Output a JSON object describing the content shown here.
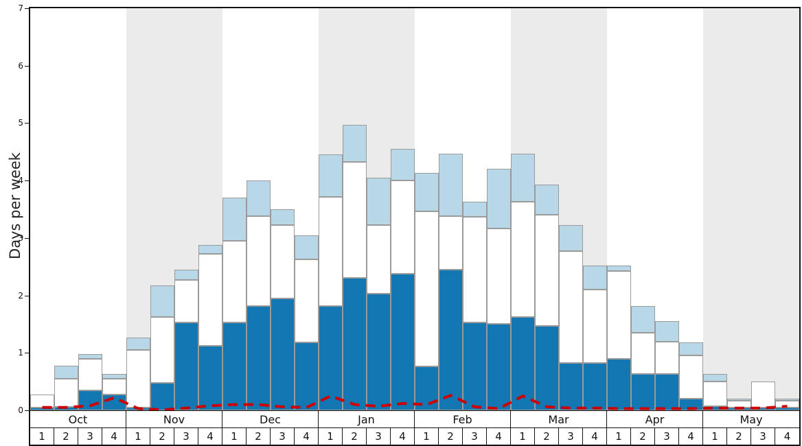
{
  "chart_data": {
    "type": "bar",
    "title": "",
    "ylabel": "Days per week",
    "ylim": [
      0,
      7
    ],
    "yticks": [
      0,
      1,
      2,
      3,
      4,
      5,
      6,
      7
    ],
    "grid": false,
    "legend": "none",
    "months": [
      "Oct",
      "Nov",
      "Dec",
      "Jan",
      "Feb",
      "Mar",
      "Apr",
      "May"
    ],
    "weeks_per_month": 4,
    "week_labels": [
      "1",
      "2",
      "3",
      "4"
    ],
    "stacking_note": "values are cumulative stack tops in days-per-week; stack order bottom-to-top: heavy-snow (dark blue), average-snow (white), light-snow (light blue)",
    "series_tops": {
      "dark": [
        0.05,
        0.06,
        0.35,
        0.28,
        0.05,
        0.48,
        1.53,
        1.12,
        1.53,
        1.82,
        1.95,
        1.18,
        1.82,
        2.3,
        2.03,
        2.38,
        0.77,
        2.45,
        1.53,
        1.5,
        1.62,
        1.47,
        0.83,
        0.83,
        0.9,
        0.63,
        0.63,
        0.2,
        0.07,
        0.05,
        0.05,
        0.05
      ],
      "white": [
        0.27,
        0.55,
        0.9,
        0.55,
        1.05,
        1.63,
        2.27,
        2.72,
        2.95,
        3.38,
        3.22,
        2.63,
        3.72,
        4.33,
        3.22,
        4.0,
        3.47,
        3.38,
        3.37,
        3.17,
        3.63,
        3.4,
        2.77,
        2.1,
        2.43,
        1.35,
        1.2,
        0.95,
        0.5,
        0.17,
        0.5,
        0.17
      ],
      "total": [
        0.27,
        0.78,
        0.98,
        0.63,
        1.27,
        2.17,
        2.45,
        2.88,
        3.7,
        4.0,
        3.5,
        3.05,
        4.45,
        4.97,
        4.05,
        4.55,
        4.13,
        4.47,
        3.63,
        4.2,
        4.47,
        3.93,
        3.22,
        2.52,
        2.52,
        1.82,
        1.55,
        1.18,
        0.63,
        0.2,
        0.5,
        0.2
      ]
    },
    "red_line": {
      "name": "dashed-red-line",
      "values": [
        0.05,
        0.05,
        0.08,
        0.22,
        0.03,
        0.01,
        0.04,
        0.08,
        0.1,
        0.1,
        0.06,
        0.05,
        0.25,
        0.1,
        0.07,
        0.12,
        0.1,
        0.26,
        0.06,
        0.03,
        0.25,
        0.06,
        0.04,
        0.04,
        0.03,
        0.03,
        0.03,
        0.03,
        0.04,
        0.04,
        0.04,
        0.07
      ]
    },
    "colors": {
      "dark_blue": "#1377b4",
      "light_blue": "#b9d8e7",
      "white_bar": "#ffffff",
      "bar_outline": "#9a9a9a",
      "band_even": "#ffffff",
      "band_odd": "#ebebeb",
      "red": "#cc0000",
      "axis": "#111111"
    }
  }
}
